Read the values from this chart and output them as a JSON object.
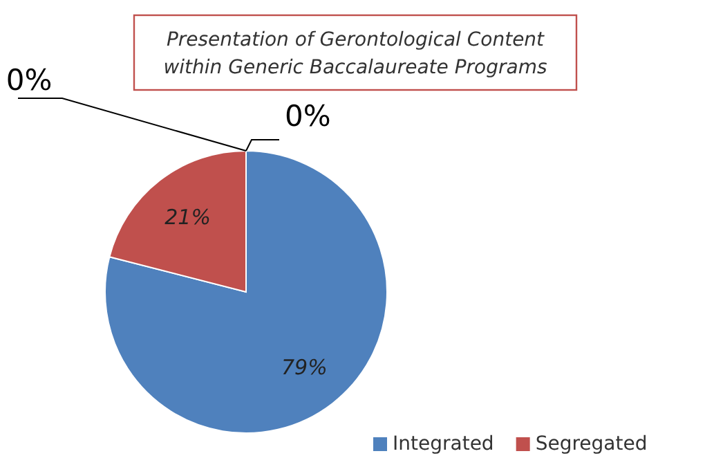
{
  "chart_data": {
    "type": "pie",
    "title": "Presentation of Gerontological Content within Generic Baccalaureate Programs",
    "categories": [
      "Integrated",
      "Segregated",
      null,
      null
    ],
    "values": [
      79,
      21,
      0,
      0
    ],
    "colors": [
      "#4f81bd",
      "#c0504d",
      "#9bbb59",
      "#8064a2"
    ],
    "value_labels": [
      "79%",
      "21%",
      "0%",
      "0%"
    ],
    "legend": "bottom right"
  }
}
